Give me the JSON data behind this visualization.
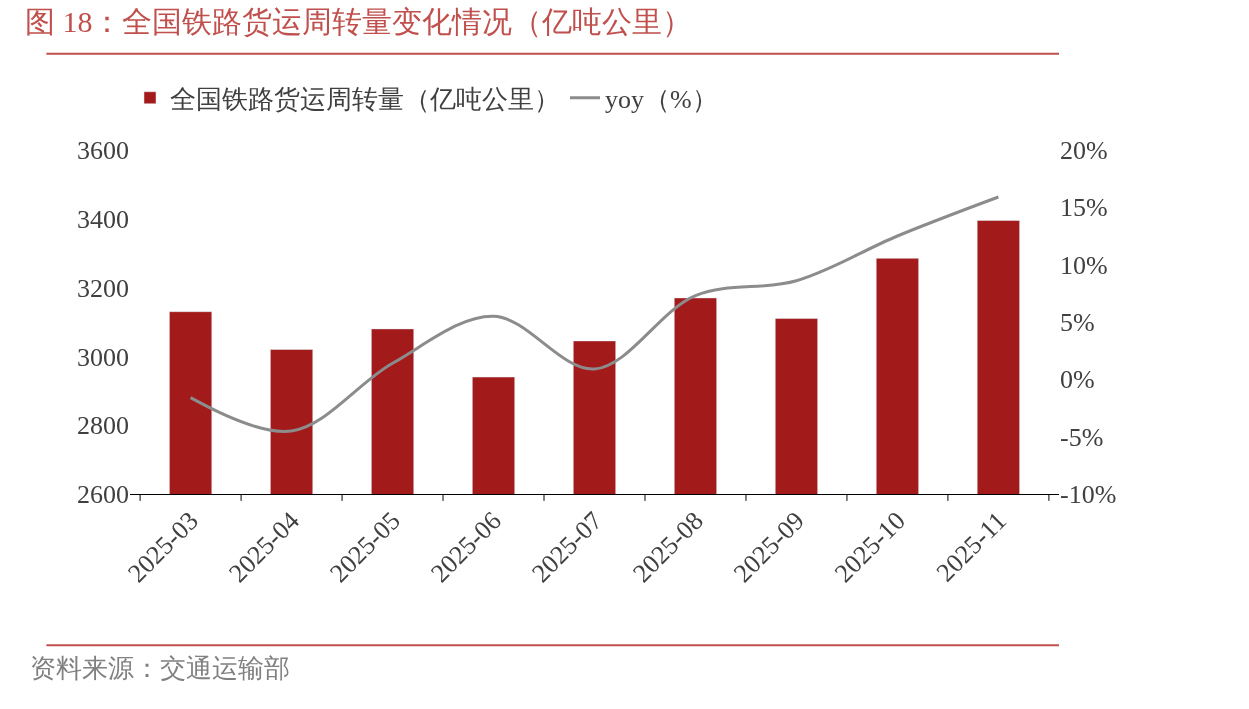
{
  "chart_data": {
    "type": "bar",
    "title": "图 18：全国铁路货运周转量变化情况（亿吨公里）",
    "categories": [
      "2025-03",
      "2025-04",
      "2025-05",
      "2025-06",
      "2025-07",
      "2025-08",
      "2025-09",
      "2025-10",
      "2025-11"
    ],
    "series": [
      {
        "name": "全国铁路货运周转量（亿吨公里）",
        "color": "#a31a1a",
        "values": [
          3130,
          3020,
          3080,
          2940,
          3045,
          3170,
          3110,
          3285,
          3395
        ]
      },
      {
        "name": "yoy（%）",
        "type": "line",
        "axis": "y2",
        "color": "#8c8c8c",
        "values": [
          -1.6,
          -4.5,
          1.4,
          5.5,
          0.9,
          7.3,
          8.6,
          12.5,
          15.9
        ]
      }
    ],
    "ylim": [
      2600,
      3600
    ],
    "yticks": [
      2600,
      2800,
      3000,
      3200,
      3400,
      3600
    ],
    "y2lim": [
      -10,
      20
    ],
    "y2ticks": [
      {
        "value": -10,
        "label": "-10%"
      },
      {
        "value": -5,
        "label": "-5%"
      },
      {
        "value": 0,
        "label": "0%"
      },
      {
        "value": 5,
        "label": "5%"
      },
      {
        "value": 10,
        "label": "10%"
      },
      {
        "value": 15,
        "label": "15%"
      },
      {
        "value": 20,
        "label": "20%"
      }
    ],
    "legend": "top",
    "annotations": [
      "资料来源：交通运输部"
    ]
  }
}
